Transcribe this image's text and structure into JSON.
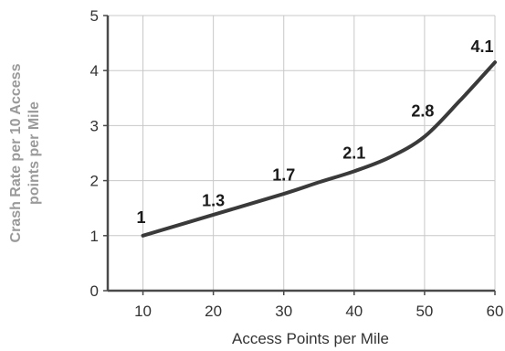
{
  "chart_data": {
    "type": "line",
    "title": "",
    "xlabel": "Access Points per Mile",
    "ylabel_lines": [
      "Crash Rate per 10 Access",
      "points per Mile"
    ],
    "xlim": [
      5,
      60
    ],
    "ylim": [
      0,
      5
    ],
    "x_ticks": [
      10,
      20,
      30,
      40,
      50,
      60
    ],
    "y_ticks": [
      0,
      1,
      2,
      3,
      4,
      5
    ],
    "grid": true,
    "line_color": "#3a3a3a",
    "grid_color": "#c8c8c8",
    "axis_color": "#4a4a4a",
    "label_points": [
      {
        "x": 10,
        "y": 1.0,
        "label": "1"
      },
      {
        "x": 20,
        "y": 1.3,
        "label": "1.3"
      },
      {
        "x": 30,
        "y": 1.7,
        "label": "1.7"
      },
      {
        "x": 40,
        "y": 2.1,
        "label": "2.1"
      },
      {
        "x": 50,
        "y": 2.8,
        "label": "2.8"
      },
      {
        "x": 60,
        "y": 4.1,
        "label": "4.1"
      }
    ],
    "curve_points": [
      {
        "x": 10,
        "y": 1.0
      },
      {
        "x": 20,
        "y": 1.38
      },
      {
        "x": 30,
        "y": 1.76
      },
      {
        "x": 35,
        "y": 1.97
      },
      {
        "x": 40,
        "y": 2.17
      },
      {
        "x": 45,
        "y": 2.42
      },
      {
        "x": 50,
        "y": 2.8
      },
      {
        "x": 55,
        "y": 3.45
      },
      {
        "x": 60,
        "y": 4.15
      }
    ]
  }
}
